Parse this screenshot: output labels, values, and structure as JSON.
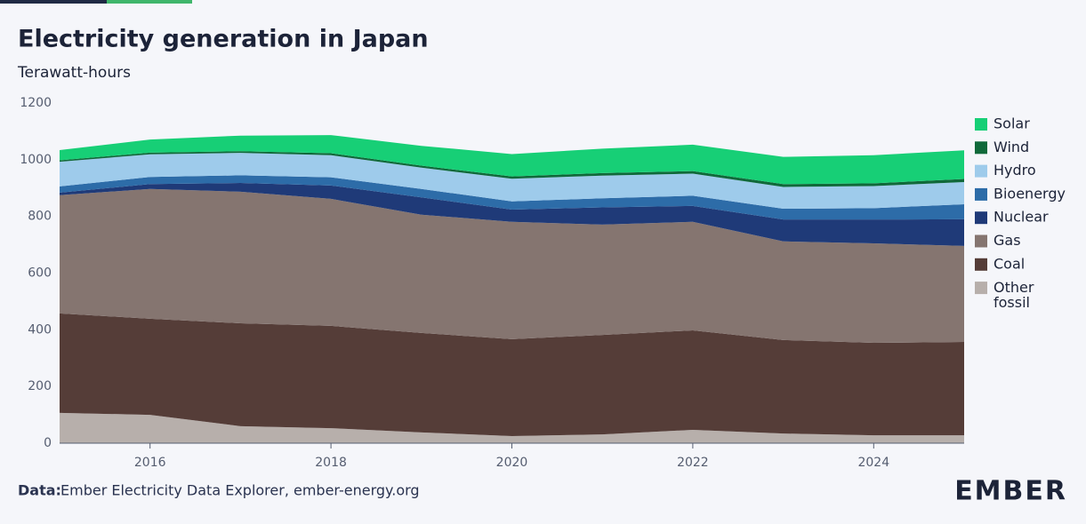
{
  "chart_data": {
    "type": "stacked-area",
    "title": "Electricity generation in Japan",
    "subtitle": "Terawatt-hours",
    "source_label": "Data:",
    "source": "Ember Electricity Data Explorer, ember-energy.org",
    "brand": "EMBER",
    "x": [
      2015,
      2016,
      2017,
      2018,
      2019,
      2020,
      2021,
      2022,
      2023,
      2024,
      2025
    ],
    "xlim": [
      2015,
      2025
    ],
    "xticks": [
      2016,
      2018,
      2020,
      2022,
      2024
    ],
    "ylim": [
      0,
      1200
    ],
    "yticks": [
      0,
      200,
      400,
      600,
      800,
      1000,
      1200
    ],
    "series": [
      {
        "name": "Other fossil",
        "color": "#b7afab",
        "values": [
          107,
          100,
          60,
          53,
          38,
          25,
          31,
          47,
          34,
          28,
          28
        ]
      },
      {
        "name": "Coal",
        "color": "#553d38",
        "values": [
          351,
          339,
          363,
          361,
          351,
          342,
          351,
          351,
          330,
          326,
          329
        ]
      },
      {
        "name": "Gas",
        "color": "#857570",
        "values": [
          417,
          458,
          464,
          448,
          417,
          414,
          389,
          383,
          348,
          351,
          339
        ]
      },
      {
        "name": "Nuclear",
        "color": "#1f3a78",
        "values": [
          9,
          17,
          31,
          47,
          61,
          43,
          61,
          56,
          77,
          84,
          94
        ]
      },
      {
        "name": "Bioenergy",
        "color": "#2d6ca8",
        "values": [
          22,
          25,
          27,
          29,
          30,
          29,
          32,
          36,
          38,
          40,
          53
        ]
      },
      {
        "name": "Hydro",
        "color": "#9ecbeb",
        "values": [
          87,
          80,
          79,
          78,
          75,
          80,
          80,
          78,
          77,
          78,
          78
        ]
      },
      {
        "name": "Wind",
        "color": "#10693a",
        "values": [
          5,
          6,
          6,
          7,
          7,
          8,
          9,
          9,
          10,
          10,
          11
        ]
      },
      {
        "name": "Solar",
        "color": "#17cf76",
        "values": [
          36,
          46,
          55,
          64,
          70,
          79,
          86,
          93,
          96,
          99,
          101
        ]
      }
    ]
  }
}
